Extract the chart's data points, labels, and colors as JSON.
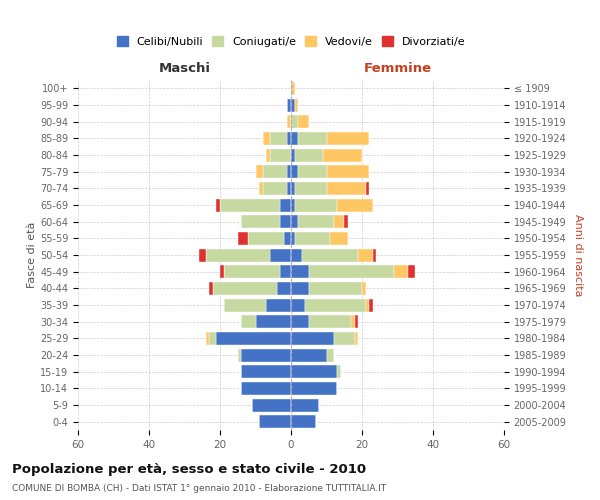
{
  "age_groups": [
    "0-4",
    "5-9",
    "10-14",
    "15-19",
    "20-24",
    "25-29",
    "30-34",
    "35-39",
    "40-44",
    "45-49",
    "50-54",
    "55-59",
    "60-64",
    "65-69",
    "70-74",
    "75-79",
    "80-84",
    "85-89",
    "90-94",
    "95-99",
    "100+"
  ],
  "birth_years": [
    "2005-2009",
    "2000-2004",
    "1995-1999",
    "1990-1994",
    "1985-1989",
    "1980-1984",
    "1975-1979",
    "1970-1974",
    "1965-1969",
    "1960-1964",
    "1955-1959",
    "1950-1954",
    "1945-1949",
    "1940-1944",
    "1935-1939",
    "1930-1934",
    "1925-1929",
    "1920-1924",
    "1915-1919",
    "1910-1914",
    "≤ 1909"
  ],
  "colors": {
    "celibe": "#4472c4",
    "coniugato": "#c6d9a0",
    "vedovo": "#ffc764",
    "divorziato": "#e03030"
  },
  "male": {
    "celibe": [
      9,
      11,
      14,
      14,
      14,
      21,
      10,
      7,
      4,
      3,
      6,
      2,
      3,
      3,
      1,
      1,
      0,
      1,
      0,
      1,
      0
    ],
    "coniugato": [
      0,
      0,
      0,
      0,
      1,
      2,
      4,
      12,
      18,
      16,
      18,
      10,
      11,
      17,
      7,
      7,
      6,
      5,
      0,
      0,
      0
    ],
    "vedovo": [
      0,
      0,
      0,
      0,
      0,
      1,
      0,
      0,
      0,
      0,
      0,
      0,
      0,
      0,
      1,
      2,
      1,
      2,
      1,
      0,
      0
    ],
    "divorziato": [
      0,
      0,
      0,
      0,
      0,
      0,
      0,
      0,
      1,
      1,
      2,
      3,
      0,
      1,
      0,
      0,
      0,
      0,
      0,
      0,
      0
    ]
  },
  "female": {
    "nubile": [
      7,
      8,
      13,
      13,
      10,
      12,
      5,
      4,
      5,
      5,
      3,
      1,
      2,
      1,
      1,
      2,
      1,
      2,
      0,
      1,
      0
    ],
    "coniugata": [
      0,
      0,
      0,
      1,
      2,
      6,
      12,
      17,
      15,
      24,
      16,
      10,
      10,
      12,
      9,
      8,
      8,
      8,
      2,
      0,
      0
    ],
    "vedova": [
      0,
      0,
      0,
      0,
      0,
      1,
      1,
      1,
      1,
      4,
      4,
      5,
      3,
      10,
      11,
      12,
      11,
      12,
      3,
      1,
      1
    ],
    "divorziata": [
      0,
      0,
      0,
      0,
      0,
      0,
      1,
      1,
      0,
      2,
      1,
      0,
      1,
      0,
      1,
      0,
      0,
      0,
      0,
      0,
      0
    ]
  },
  "title": "Popolazione per età, sesso e stato civile - 2010",
  "subtitle": "COMUNE DI BOMBA (CH) - Dati ISTAT 1° gennaio 2010 - Elaborazione TUTTITALIA.IT",
  "xlabel_left": "Maschi",
  "xlabel_right": "Femmine",
  "ylabel_left": "Fasce di età",
  "ylabel_right": "Anni di nascita",
  "xlim": 60,
  "background_color": "#ffffff",
  "grid_color": "#cccccc",
  "legend_labels": [
    "Celibi/Nubili",
    "Coniugati/e",
    "Vedovi/e",
    "Divorziati/e"
  ]
}
